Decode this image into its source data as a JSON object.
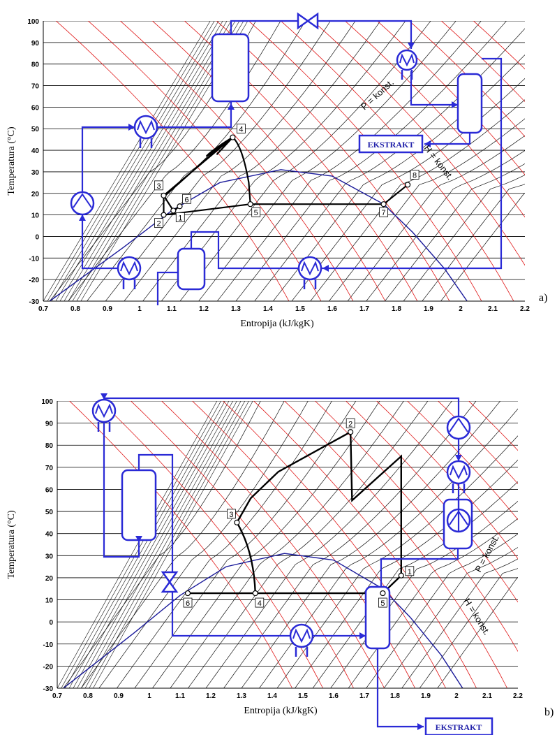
{
  "charts": [
    {
      "id": "a",
      "part_label": "a)",
      "xlabel": "Entropija (kJ/kgK)",
      "ylabel": "Temperatura (°C)",
      "xlim": [
        0.7,
        2.2
      ],
      "ylim": [
        -30,
        100
      ],
      "x_ticks": [
        "0.7",
        "0.8",
        "0.9",
        "1",
        "1.1",
        "1.2",
        "1.3",
        "1.4",
        "1.5",
        "1.6",
        "1.7",
        "1.8",
        "1.9",
        "2",
        "2.1",
        "2.2"
      ],
      "y_ticks": [
        "100",
        "90",
        "80",
        "70",
        "60",
        "50",
        "40",
        "30",
        "20",
        "10",
        "0",
        "-10",
        "-20",
        "-30"
      ],
      "isobar_label": "P = konst.",
      "isenthalp_label": "H = konst.",
      "extract_label": "EKSTRAKT",
      "points": [
        {
          "label": "1",
          "s": 1.105,
          "t": 12
        },
        {
          "label": "2",
          "s": 1.075,
          "t": 10
        },
        {
          "label": "3",
          "s": 1.075,
          "t": 19
        },
        {
          "label": "4",
          "s": 1.29,
          "t": 46
        },
        {
          "label": "5",
          "s": 1.345,
          "t": 15
        },
        {
          "label": "6",
          "s": 1.125,
          "t": 14
        },
        {
          "label": "7",
          "s": 1.76,
          "t": 15
        },
        {
          "label": "8",
          "s": 1.835,
          "t": 24
        }
      ]
    },
    {
      "id": "b",
      "part_label": "b)",
      "xlabel": "Entropija (kJ/kgK)",
      "ylabel": "Temperatura (°C)",
      "xlim": [
        0.7,
        2.2
      ],
      "ylim": [
        -30,
        100
      ],
      "x_ticks": [
        "0.7",
        "0.8",
        "0.9",
        "1",
        "1.1",
        "1.2",
        "1.3",
        "1.4",
        "1.5",
        "1.6",
        "1.7",
        "1.8",
        "1.9",
        "2",
        "2.1",
        "2.2"
      ],
      "y_ticks": [
        "100",
        "90",
        "80",
        "70",
        "60",
        "50",
        "40",
        "30",
        "20",
        "10",
        "0",
        "-10",
        "-20",
        "-30"
      ],
      "isobar_label": "P = konst.",
      "isenthalp_label": "H = konst.",
      "extract_label": "EKSTRAKT",
      "points": [
        {
          "label": "1",
          "s": 1.82,
          "t": 21
        },
        {
          "label": "2",
          "s": 1.655,
          "t": 86
        },
        {
          "label": "3",
          "s": 1.285,
          "t": 45
        },
        {
          "label": "4",
          "s": 1.345,
          "t": 13
        },
        {
          "label": "5",
          "s": 1.76,
          "t": 13
        },
        {
          "label": "6",
          "s": 1.125,
          "t": 13
        }
      ]
    }
  ]
}
